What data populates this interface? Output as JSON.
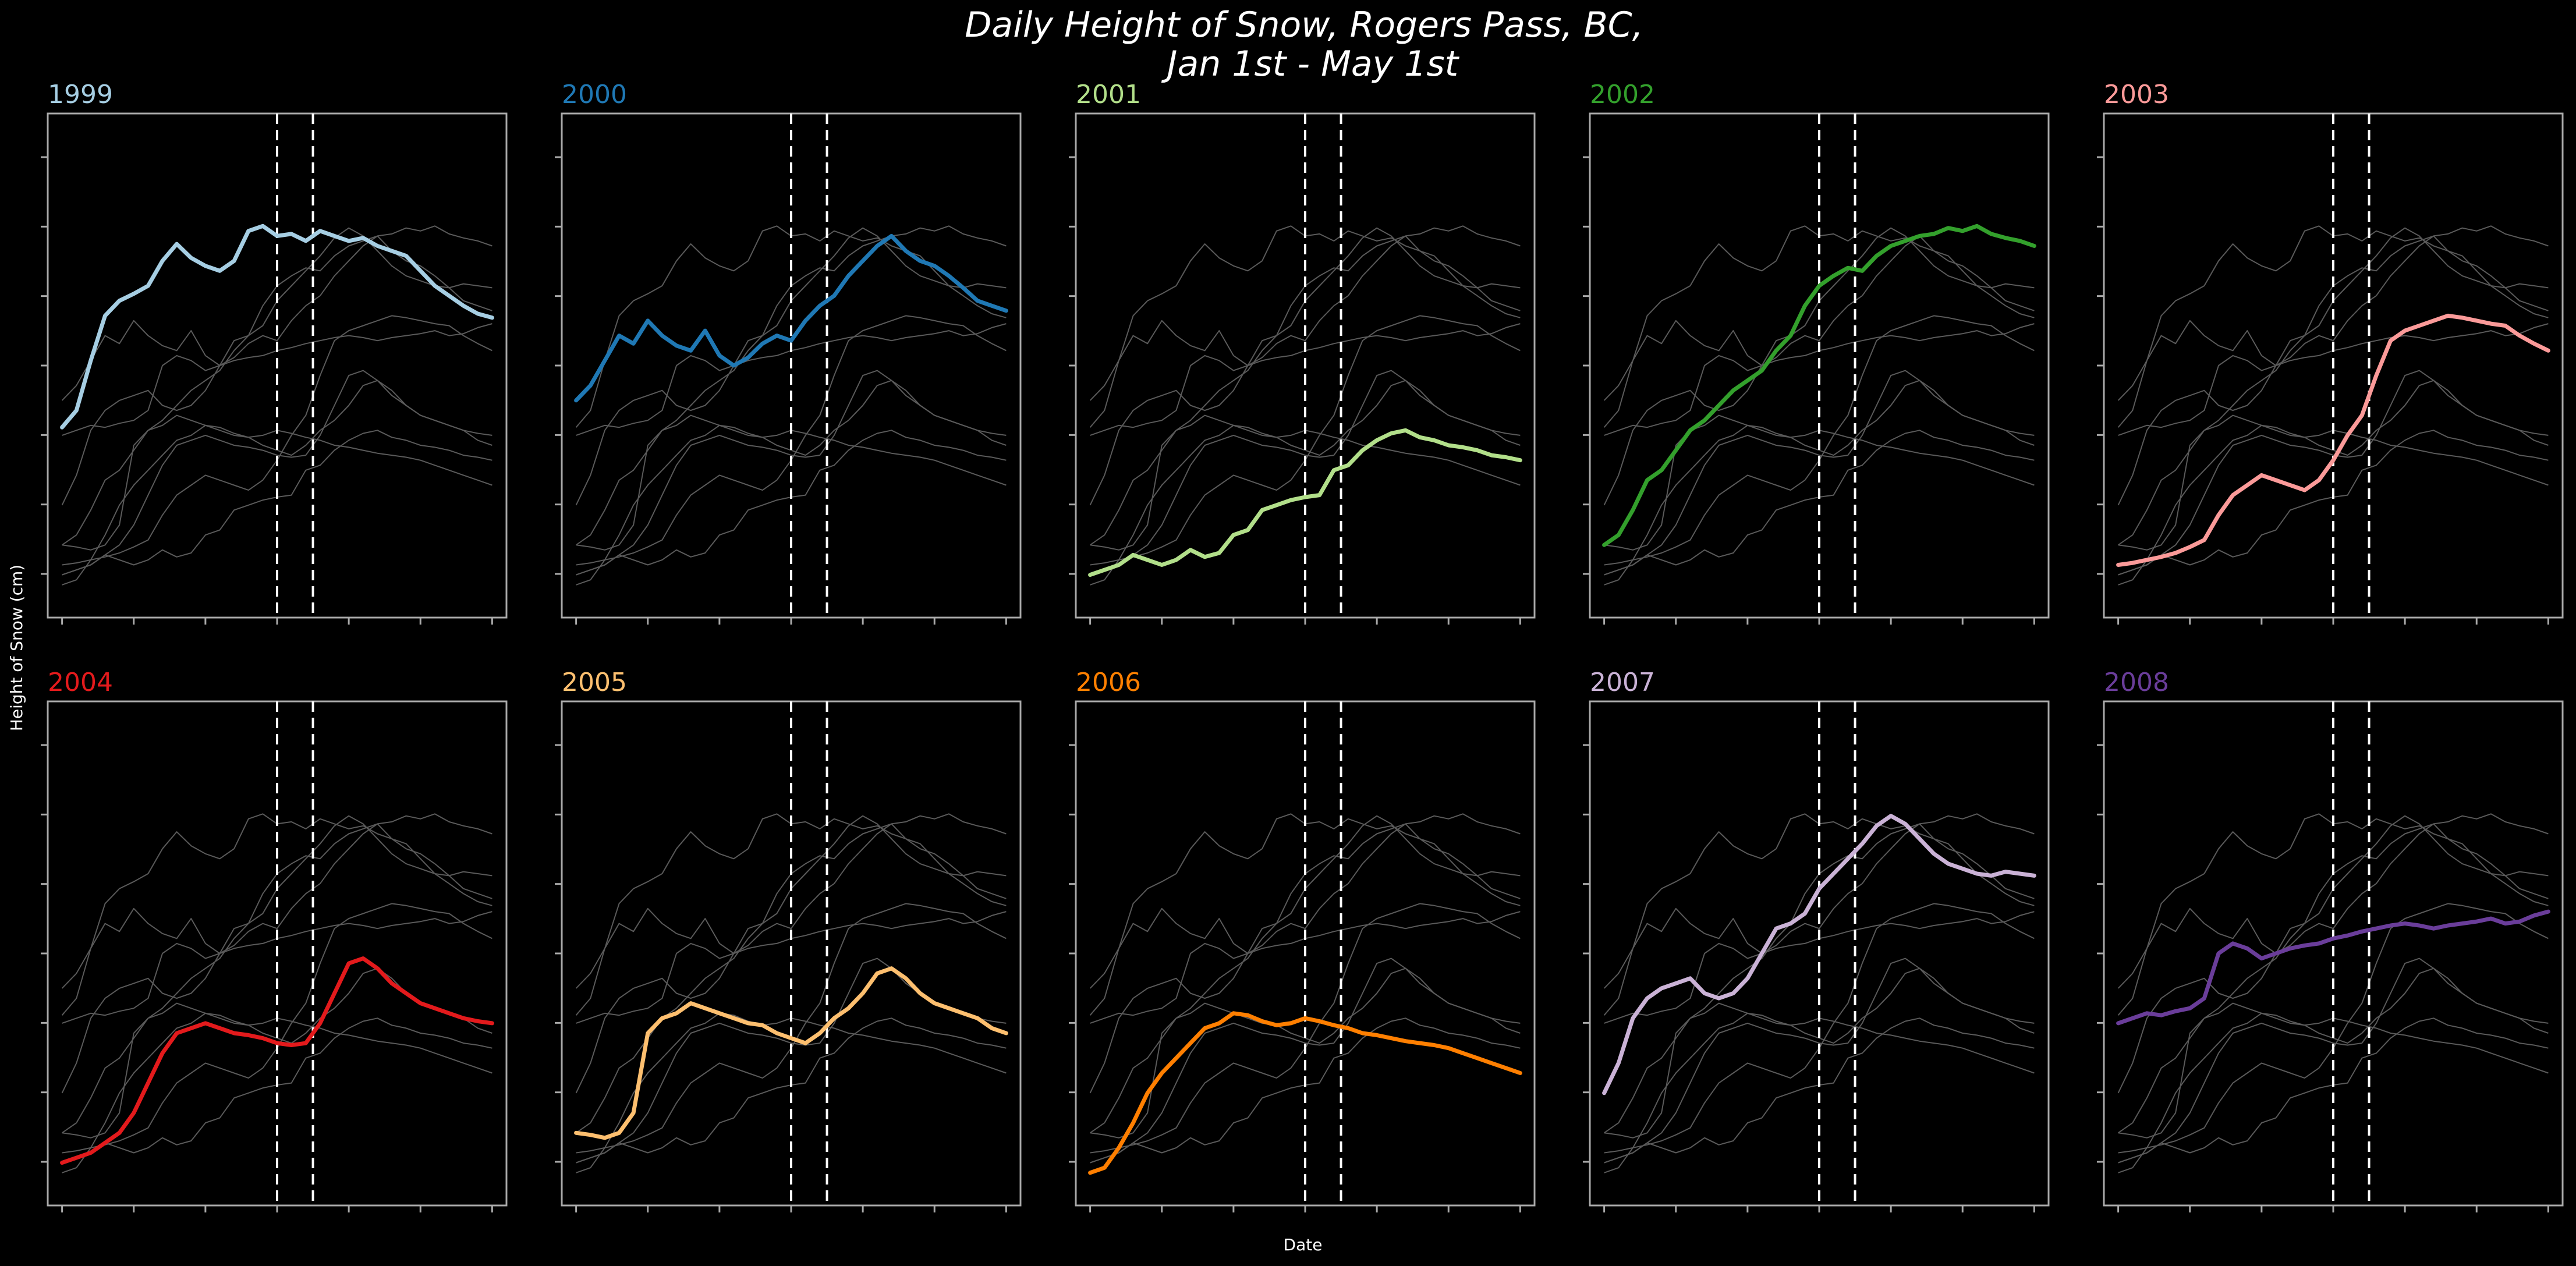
{
  "figure": {
    "title_line1": "Daily Height of Snow, Rogers Pass, BC,",
    "title_line2": "Jan 1st - May 1st",
    "xlabel": "Date",
    "ylabel": "Height of Snow (cm)",
    "background": "#000000",
    "frame_color": "#aaaaaa",
    "background_line_color": "#5a5a5a",
    "marker_line_color": "#ffffff"
  },
  "chart_data": {
    "type": "line",
    "layout": "small-multiples 2x5",
    "x": [
      0,
      4,
      8,
      12,
      16,
      20,
      24,
      28,
      32,
      36,
      40,
      44,
      48,
      52,
      56,
      60,
      64,
      68,
      72,
      76,
      80,
      84,
      88,
      92,
      96,
      100,
      104,
      108,
      112,
      116,
      120
    ],
    "xlim": [
      -4,
      124
    ],
    "ylim": [
      0,
      480
    ],
    "yscale": "linear",
    "grid": false,
    "vlines_x": [
      60,
      70
    ],
    "vlines_style": "dashed",
    "series": [
      {
        "name": "1999",
        "color": "#a6cee3",
        "values": [
          178,
          195,
          245,
          290,
          305,
          312,
          320,
          345,
          362,
          348,
          340,
          335,
          345,
          375,
          380,
          370,
          372,
          365,
          375,
          370,
          365,
          368,
          360,
          355,
          350,
          335,
          320,
          310,
          300,
          292,
          288
        ]
      },
      {
        "name": "2000",
        "color": "#1f78b4",
        "values": [
          205,
          220,
          245,
          270,
          262,
          285,
          270,
          260,
          255,
          275,
          250,
          240,
          248,
          262,
          270,
          265,
          285,
          300,
          310,
          330,
          345,
          360,
          370,
          355,
          345,
          340,
          330,
          318,
          305,
          300,
          295
        ]
      },
      {
        "name": "2001",
        "color": "#b2df8a",
        "values": [
          30,
          35,
          40,
          50,
          45,
          40,
          45,
          55,
          48,
          52,
          70,
          75,
          95,
          100,
          105,
          108,
          110,
          135,
          140,
          155,
          165,
          172,
          175,
          168,
          165,
          160,
          158,
          155,
          150,
          148,
          145
        ]
      },
      {
        "name": "2002",
        "color": "#33a02c",
        "values": [
          60,
          70,
          95,
          125,
          135,
          155,
          175,
          185,
          200,
          215,
          225,
          235,
          255,
          270,
          300,
          320,
          330,
          338,
          335,
          350,
          360,
          365,
          370,
          372,
          378,
          375,
          380,
          372,
          368,
          365,
          360
        ]
      },
      {
        "name": "2003",
        "color": "#fb9a99",
        "values": [
          40,
          42,
          45,
          48,
          52,
          58,
          65,
          90,
          110,
          120,
          130,
          125,
          120,
          115,
          125,
          145,
          170,
          190,
          230,
          265,
          275,
          280,
          285,
          290,
          288,
          285,
          282,
          280,
          270,
          262,
          255
        ]
      },
      {
        "name": "2004",
        "color": "#e31a1c",
        "values": [
          30,
          35,
          40,
          50,
          60,
          80,
          110,
          140,
          160,
          165,
          170,
          165,
          160,
          158,
          155,
          150,
          148,
          150,
          170,
          200,
          230,
          235,
          225,
          210,
          200,
          190,
          185,
          180,
          175,
          172,
          170
        ]
      },
      {
        "name": "2005",
        "color": "#fdbf6f",
        "values": [
          60,
          58,
          55,
          60,
          80,
          160,
          175,
          180,
          190,
          185,
          180,
          175,
          170,
          168,
          160,
          155,
          150,
          160,
          175,
          185,
          200,
          220,
          225,
          215,
          200,
          190,
          185,
          180,
          175,
          165,
          160
        ]
      },
      {
        "name": "2006",
        "color": "#ff7f00",
        "values": [
          20,
          25,
          45,
          70,
          100,
          120,
          135,
          150,
          165,
          170,
          180,
          178,
          172,
          168,
          170,
          175,
          172,
          168,
          165,
          160,
          158,
          155,
          152,
          150,
          148,
          145,
          140,
          135,
          130,
          125,
          120
        ]
      },
      {
        "name": "2007",
        "color": "#cab2d6",
        "values": [
          100,
          130,
          175,
          195,
          205,
          210,
          215,
          200,
          195,
          200,
          215,
          240,
          265,
          270,
          280,
          305,
          320,
          335,
          350,
          368,
          378,
          370,
          355,
          340,
          330,
          325,
          320,
          318,
          322,
          320,
          318
        ]
      },
      {
        "name": "2008",
        "color": "#6a3d9a",
        "values": [
          170,
          175,
          180,
          178,
          182,
          185,
          195,
          240,
          250,
          245,
          235,
          240,
          245,
          248,
          250,
          255,
          258,
          262,
          265,
          268,
          270,
          268,
          265,
          268,
          270,
          272,
          275,
          270,
          272,
          278,
          282
        ]
      }
    ]
  }
}
